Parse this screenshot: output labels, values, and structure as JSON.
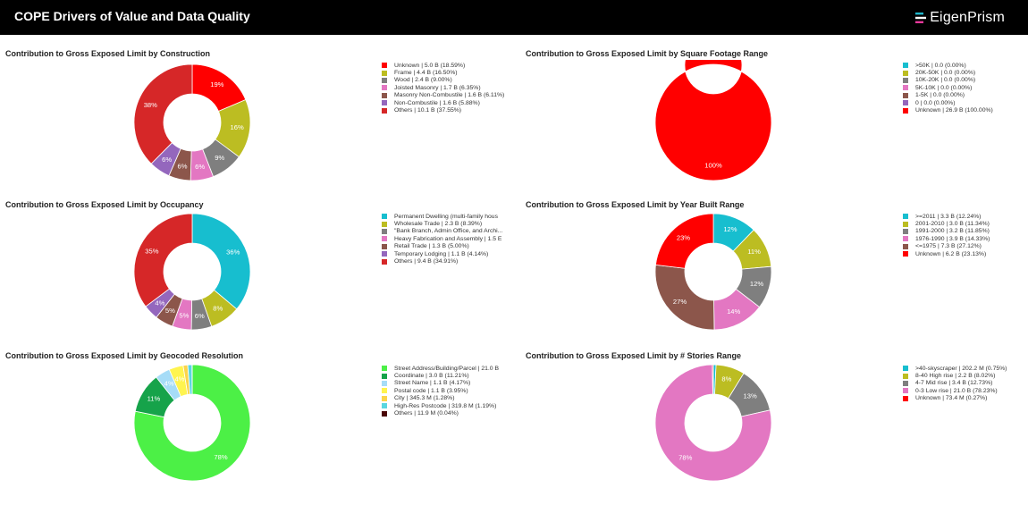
{
  "header": {
    "title": "COPE Drivers of Value and Data Quality",
    "brand": "EigenPrism",
    "brand_icon": "eigenprism-logo-icon",
    "background": "#000000"
  },
  "chart_data": [
    {
      "type": "pie",
      "donut": true,
      "title": "Contribution to Gross Exposed Limit by Construction",
      "legend_position": "right",
      "slices": [
        {
          "label": "Unknown | 5.0 B (18.59%)",
          "value": 18.59,
          "pct_label": "19%",
          "color": "#ff0000"
        },
        {
          "label": "Frame | 4.4 B (16.50%)",
          "value": 16.5,
          "pct_label": "16%",
          "color": "#bcbd22"
        },
        {
          "label": "Wood | 2.4 B (9.00%)",
          "value": 9.0,
          "pct_label": "9%",
          "color": "#7f7f7f"
        },
        {
          "label": "Joisted Masonry | 1.7 B (6.35%)",
          "value": 6.35,
          "pct_label": "6%",
          "color": "#e377c2"
        },
        {
          "label": "Masonry Non-Combustile | 1.6 B (6.11%)",
          "value": 6.11,
          "pct_label": "6%",
          "color": "#8c564b"
        },
        {
          "label": "Non-Combustile | 1.6 B (5.88%)",
          "value": 5.88,
          "pct_label": "6%",
          "color": "#9467bd"
        },
        {
          "label": "Others | 10.1 B (37.55%)",
          "value": 37.55,
          "pct_label": "38%",
          "color": "#d62728"
        }
      ]
    },
    {
      "type": "pie",
      "donut": true,
      "title": "Contribution to Gross Exposed Limit by Square Footage Range",
      "legend_position": "right",
      "slices": [
        {
          "label": ">50K | 0.0 (0.00%)",
          "value": 0,
          "pct_label": "",
          "color": "#17becf"
        },
        {
          "label": "20K-50K | 0.0 (0.00%)",
          "value": 0,
          "pct_label": "",
          "color": "#bcbd22"
        },
        {
          "label": "10K-20K | 0.0 (0.00%)",
          "value": 0,
          "pct_label": "",
          "color": "#7f7f7f"
        },
        {
          "label": "5K-10K | 0.0 (0.00%)",
          "value": 0,
          "pct_label": "",
          "color": "#e377c2"
        },
        {
          "label": "1-5K | 0.0 (0.00%)",
          "value": 0,
          "pct_label": "",
          "color": "#8c564b"
        },
        {
          "label": "0 | 0.0 (0.00%)",
          "value": 0,
          "pct_label": "",
          "color": "#9467bd"
        },
        {
          "label": "Unknown | 26.9 B (100.00%)",
          "value": 100.0,
          "pct_label": "100%",
          "color": "#ff0000"
        }
      ]
    },
    {
      "type": "pie",
      "donut": true,
      "title": "Contribution to Gross Exposed Limit by Occupancy",
      "legend_position": "right",
      "slices": [
        {
          "label": "Permanent Dwelling (multi-family hous",
          "value": 35.8,
          "pct_label": "36%",
          "color": "#17becf"
        },
        {
          "label": "Wholesale Trade | 2.3 B (8.39%)",
          "value": 8.39,
          "pct_label": "8%",
          "color": "#bcbd22"
        },
        {
          "label": "\"Bank Branch, Admin Office, and Archi...",
          "value": 5.6,
          "pct_label": "6%",
          "color": "#7f7f7f"
        },
        {
          "label": "Heavy Fabrication and Assembly | 1.5 E",
          "value": 5.3,
          "pct_label": "5%",
          "color": "#e377c2"
        },
        {
          "label": "Retail Trade | 1.3 B (5.00%)",
          "value": 5.0,
          "pct_label": "5%",
          "color": "#8c564b"
        },
        {
          "label": "Temporary Lodging | 1.1 B (4.14%)",
          "value": 4.14,
          "pct_label": "4%",
          "color": "#9467bd"
        },
        {
          "label": "Others | 9.4 B (34.91%)",
          "value": 34.91,
          "pct_label": "35%",
          "color": "#d62728"
        }
      ]
    },
    {
      "type": "pie",
      "donut": true,
      "title": "Contribution to Gross Exposed Limit by Year Built Range",
      "legend_position": "right",
      "slices": [
        {
          "label": ">=2011 | 3.3 B (12.24%)",
          "value": 12.24,
          "pct_label": "12%",
          "color": "#17becf"
        },
        {
          "label": "2001-2010 | 3.0 B (11.34%)",
          "value": 11.34,
          "pct_label": "11%",
          "color": "#bcbd22"
        },
        {
          "label": "1991-2000 | 3.2 B (11.85%)",
          "value": 11.85,
          "pct_label": "12%",
          "color": "#7f7f7f"
        },
        {
          "label": "1976-1990 | 3.9 B (14.33%)",
          "value": 14.33,
          "pct_label": "14%",
          "color": "#e377c2"
        },
        {
          "label": "<=1975 | 7.3 B (27.12%)",
          "value": 27.12,
          "pct_label": "27%",
          "color": "#8c564b"
        },
        {
          "label": "Unknown | 6.2 B (23.13%)",
          "value": 23.13,
          "pct_label": "23%",
          "color": "#ff0000"
        }
      ]
    },
    {
      "type": "pie",
      "donut": true,
      "title": "Contribution to Gross Exposed Limit by Geocoded Resolution",
      "legend_position": "right",
      "slices": [
        {
          "label": "Street Address/Building/Parcel | 21.0 B",
          "value": 78.17,
          "pct_label": "78%",
          "color": "#4cf046"
        },
        {
          "label": "Coordinate | 3.0 B (11.21%)",
          "value": 11.21,
          "pct_label": "11%",
          "color": "#16a34a"
        },
        {
          "label": "Street Name | 1.1 B (4.17%)",
          "value": 4.17,
          "pct_label": "4%",
          "color": "#a6dcf7"
        },
        {
          "label": "Postal code | 1.1 B (3.95%)",
          "value": 3.95,
          "pct_label": "4%",
          "color": "#fff44f"
        },
        {
          "label": "City | 345.3 M (1.28%)",
          "value": 1.28,
          "pct_label": "",
          "color": "#fbd44a"
        },
        {
          "label": "High-Res Postcode | 319.8 M (1.19%)",
          "value": 1.19,
          "pct_label": "",
          "color": "#5ad7e0"
        },
        {
          "label": "Others | 11.9 M (0.04%)",
          "value": 0.04,
          "pct_label": "",
          "color": "#4a0606"
        }
      ]
    },
    {
      "type": "pie",
      "donut": true,
      "title": "Contribution to Gross Exposed Limit by # Stories Range",
      "legend_position": "right",
      "slices": [
        {
          "label": ">40-skyscraper | 202.2 M (0.75%)",
          "value": 0.75,
          "pct_label": "",
          "color": "#17becf"
        },
        {
          "label": "8-40 High rise | 2.2 B (8.02%)",
          "value": 8.02,
          "pct_label": "8%",
          "color": "#bcbd22"
        },
        {
          "label": "4-7 Mid rise | 3.4 B (12.73%)",
          "value": 12.73,
          "pct_label": "13%",
          "color": "#7f7f7f"
        },
        {
          "label": "0-3 Low rise | 21.0 B (78.23%)",
          "value": 78.23,
          "pct_label": "78%",
          "color": "#e377c2"
        },
        {
          "label": "Unknown | 73.4 M (0.27%)",
          "value": 0.27,
          "pct_label": "",
          "color": "#ff0000"
        }
      ]
    }
  ]
}
